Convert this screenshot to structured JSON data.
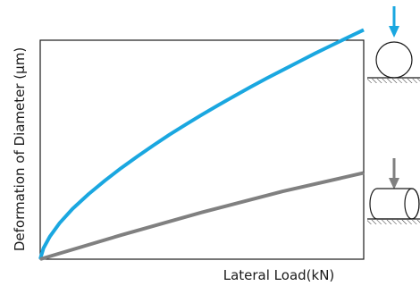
{
  "chart_data": {
    "type": "line",
    "title": "",
    "xlabel": "Lateral Load(kN)",
    "ylabel": "Deformation of Diameter (μm)",
    "xlim": [
      0,
      1
    ],
    "ylim": [
      0,
      1
    ],
    "grid": false,
    "ticks": false,
    "series": [
      {
        "color": "#1aa7e0",
        "icon": "sphere-on-ground-icon",
        "x": [
          0,
          0.01,
          0.03,
          0.06,
          0.1,
          0.15,
          0.2,
          0.25,
          0.3,
          0.35,
          0.4,
          0.45,
          0.5,
          0.55,
          0.6,
          0.65,
          0.7,
          0.75,
          0.8,
          0.85,
          0.9,
          0.95,
          1.0
        ],
        "values": [
          0,
          0.05,
          0.104,
          0.165,
          0.23,
          0.298,
          0.359,
          0.416,
          0.469,
          0.52,
          0.569,
          0.615,
          0.66,
          0.703,
          0.745,
          0.786,
          0.826,
          0.864,
          0.902,
          0.94,
          0.976,
          1.012,
          1.047
        ]
      },
      {
        "color": "#808080",
        "icon": "cylinder-on-ground-icon",
        "x": [
          0,
          0.25,
          0.5,
          0.75,
          1.0
        ],
        "values": [
          0,
          0.11,
          0.214,
          0.31,
          0.394
        ]
      }
    ]
  }
}
